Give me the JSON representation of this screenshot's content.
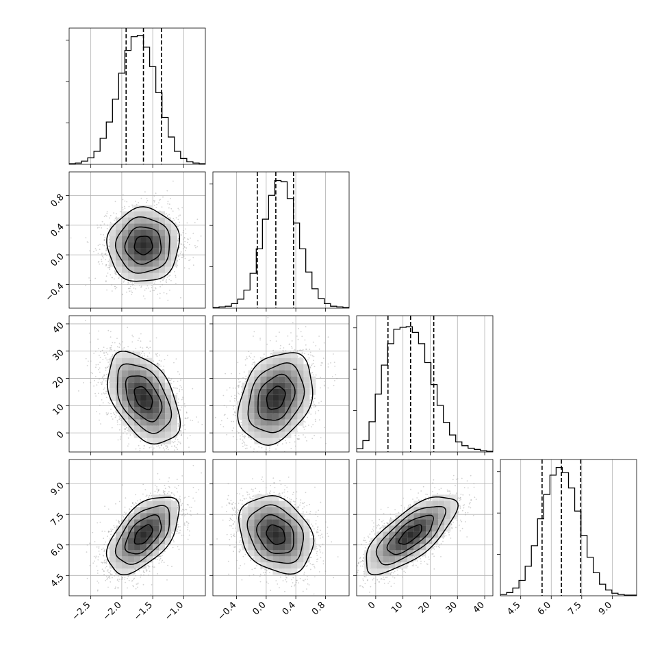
{
  "chart_data": {
    "type": "corner",
    "parameters": [
      "",
      "",
      "",
      ""
    ],
    "ranges": [
      [
        -2.85,
        -0.65
      ],
      [
        -0.72,
        1.12
      ],
      [
        -7,
        43
      ],
      [
        3.5,
        10.2
      ]
    ],
    "ticks": [
      {
        "values": [
          -2.5,
          -2.0,
          -1.5,
          -1.0
        ],
        "labels": [
          "−2.5",
          "−2.0",
          "−1.5",
          "−1.0"
        ]
      },
      {
        "values": [
          -0.4,
          0.0,
          0.4,
          0.8
        ],
        "labels": [
          "−0.4",
          "0.0",
          "0.4",
          "0.8"
        ]
      },
      {
        "values": [
          0,
          10,
          20,
          30,
          40
        ],
        "labels": [
          "0",
          "10",
          "20",
          "30",
          "40"
        ]
      },
      {
        "values": [
          4.5,
          6.0,
          7.5,
          9.0
        ],
        "labels": [
          "4.5",
          "6.0",
          "7.5",
          "9.0"
        ]
      }
    ],
    "quantiles": [
      {
        "q16": -1.93,
        "q50": -1.65,
        "q84": -1.36
      },
      {
        "q16": -0.12,
        "q50": 0.13,
        "q84": 0.37
      },
      {
        "q16": 4.5,
        "q50": 12.8,
        "q84": 21.3
      },
      {
        "q16": 5.55,
        "q50": 6.5,
        "q84": 7.45
      }
    ],
    "histograms": [
      {
        "counts": [
          1,
          2,
          5,
          10,
          20,
          40,
          65,
          100,
          140,
          175,
          196,
          198,
          180,
          150,
          110,
          72,
          42,
          20,
          9,
          4,
          2,
          1
        ],
        "max": 203
      },
      {
        "counts": [
          1,
          2,
          3,
          7,
          14,
          28,
          54,
          92,
          138,
          175,
          198,
          196,
          170,
          132,
          92,
          56,
          30,
          15,
          7,
          3,
          2,
          1
        ],
        "max": 205
      },
      {
        "counts": [
          5,
          18,
          48,
          92,
          138,
          172,
          195,
          198,
          199,
          190,
          172,
          142,
          107,
          74,
          47,
          27,
          16,
          10,
          6,
          4,
          2,
          1
        ],
        "max": 210
      },
      {
        "counts": [
          2,
          5,
          12,
          24,
          46,
          78,
          120,
          158,
          188,
          200,
          192,
          168,
          132,
          94,
          60,
          36,
          18,
          9,
          4,
          2,
          1,
          1
        ],
        "max": 206
      }
    ],
    "correlations": [
      [
        1,
        0.02,
        -0.45,
        0.55
      ],
      [
        0.02,
        1,
        0.28,
        -0.25
      ],
      [
        -0.45,
        0.28,
        1,
        0.72
      ],
      [
        0.55,
        -0.25,
        0.72,
        1
      ]
    ],
    "stdev": [
      0.29,
      0.25,
      8.4,
      0.95
    ],
    "grid": true
  }
}
